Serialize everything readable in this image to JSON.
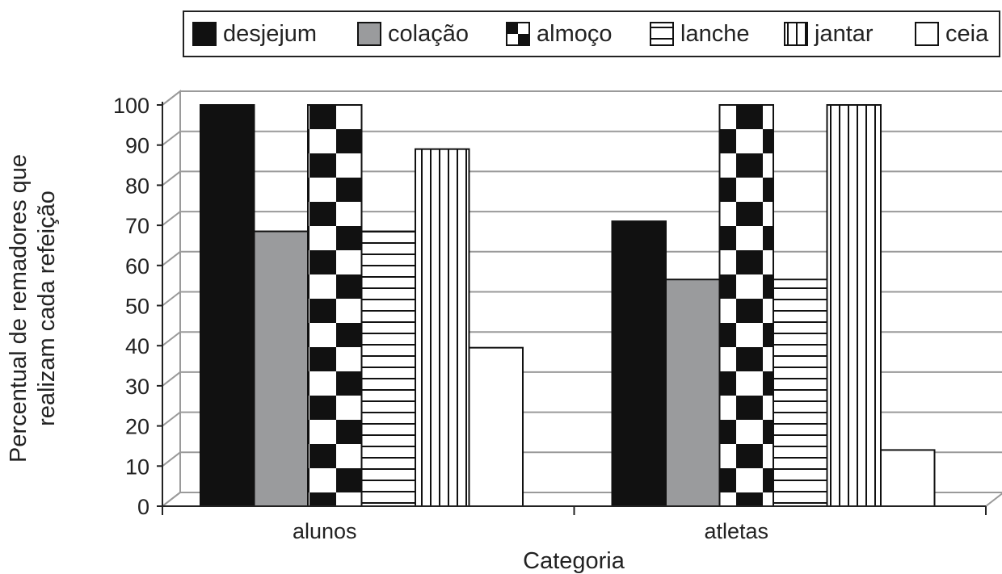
{
  "chart_data": {
    "type": "bar",
    "title": "",
    "xlabel": "Categoria",
    "ylabel_lines": [
      "Percentual de remadores que",
      "realizam cada refeição"
    ],
    "ylim": [
      0,
      100
    ],
    "yticks": [
      "0",
      "10",
      "20",
      "30",
      "40",
      "50",
      "60",
      "70",
      "80",
      "90",
      "100"
    ],
    "categories": [
      "alunos",
      "atletas"
    ],
    "legend_position": "top",
    "grid": true,
    "series": [
      {
        "name": "desjejum",
        "pattern": "solid-black",
        "values": [
          100,
          71
        ]
      },
      {
        "name": "colação",
        "pattern": "solid-gray",
        "values": [
          68.5,
          56.5
        ]
      },
      {
        "name": "almoço",
        "pattern": "checkerboard",
        "values": [
          100,
          100
        ]
      },
      {
        "name": "lanche",
        "pattern": "horizontal-lines",
        "values": [
          68.5,
          56.5
        ]
      },
      {
        "name": "jantar",
        "pattern": "vertical-lines",
        "values": [
          89,
          100
        ]
      },
      {
        "name": "ceia",
        "pattern": "white",
        "values": [
          39.5,
          14
        ]
      }
    ]
  }
}
